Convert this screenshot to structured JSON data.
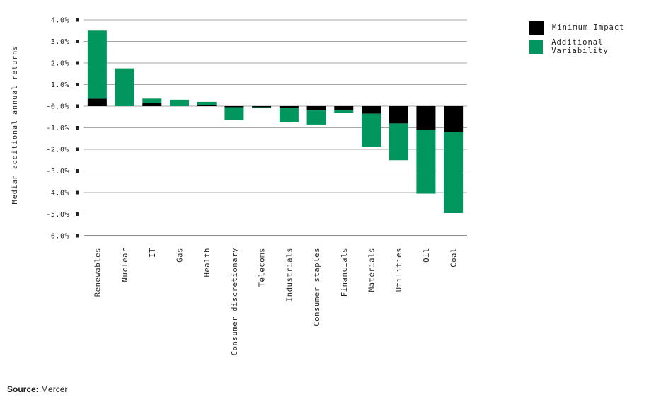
{
  "chart_data": {
    "type": "bar",
    "stacked": true,
    "ylabel": "Median additional annual returns",
    "ylim": [
      -6.0,
      4.0
    ],
    "yticks": [
      "4.0%",
      "3.0%",
      "2.0%",
      "1.0%",
      "-0.0%",
      "-1.0%",
      "-2.0%",
      "-3.0%",
      "-4.0%",
      "-5.0%",
      "-6.0%"
    ],
    "ytick_values": [
      4,
      3,
      2,
      1,
      0,
      -1,
      -2,
      -3,
      -4,
      -5,
      -6
    ],
    "grid": true,
    "legend_position": "top-right",
    "categories": [
      "Renewables",
      "Nuclear",
      "IT",
      "Gas",
      "Health",
      "Consumer discretionary",
      "Telecoms",
      "Industrials",
      "Consumer staples",
      "Financials",
      "Materials",
      "Utilities",
      "Oil",
      "Coal"
    ],
    "series": [
      {
        "name": "Minimum Impact",
        "color": "#000000",
        "values": [
          0.35,
          0.0,
          0.15,
          0.0,
          0.05,
          -0.05,
          -0.05,
          -0.1,
          -0.2,
          -0.2,
          -0.35,
          -0.8,
          -1.1,
          -1.2
        ]
      },
      {
        "name": "Additional Variability",
        "color": "#00965e",
        "values": [
          3.15,
          1.75,
          0.2,
          0.3,
          0.15,
          -0.6,
          -0.05,
          -0.65,
          -0.65,
          -0.1,
          -1.55,
          -1.7,
          -2.95,
          -3.75
        ]
      }
    ]
  },
  "source": {
    "label": "Source:",
    "text": "Mercer"
  }
}
